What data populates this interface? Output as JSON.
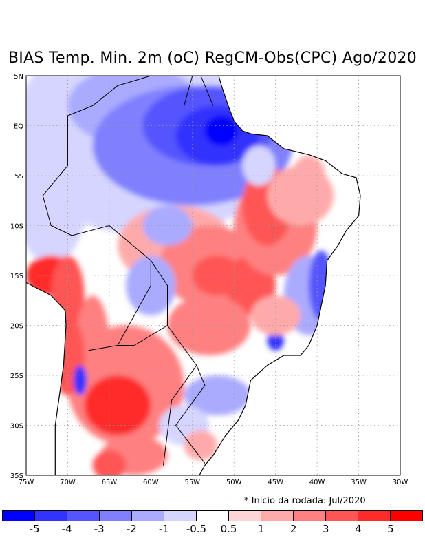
{
  "title": "BIAS Temp. Min. 2m (oC) RegCM-Obs(CPC) Ago/2020",
  "note": "* Inicio da rodada: Jul/2020",
  "map": {
    "lon_range": [
      -75,
      -30
    ],
    "lat_range": [
      -35,
      5
    ],
    "lat_labels": [
      "5N",
      "EQ",
      "5S",
      "10S",
      "15S",
      "20S",
      "25S",
      "30S",
      "35S"
    ],
    "lon_labels": [
      "75W",
      "70W",
      "65W",
      "60W",
      "55W",
      "50W",
      "45W",
      "40W",
      "35W",
      "30W"
    ]
  },
  "colorbar": {
    "colors": [
      "#0000ff",
      "#3333ff",
      "#5555ff",
      "#8080ff",
      "#aaaaff",
      "#d5d5ff",
      "#ffffff",
      "#ffd5d5",
      "#ffaaaa",
      "#ff8080",
      "#ff5555",
      "#ff2a2a",
      "#ff0000"
    ],
    "labels": [
      "-5",
      "-4",
      "-3",
      "-2",
      "-1",
      "-0.5",
      "0.5",
      "1",
      "2",
      "3",
      "4",
      "5"
    ]
  }
}
